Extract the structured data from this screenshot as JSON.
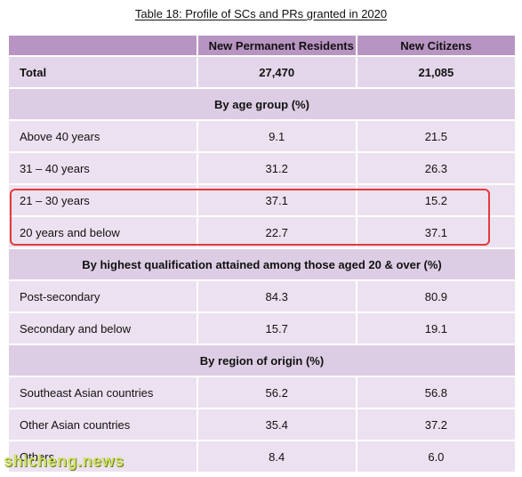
{
  "caption": "Table 18: Profile of SCs and PRs granted in 2020",
  "table": {
    "headers": [
      "",
      "New Permanent Residents",
      "New Citizens"
    ],
    "total": {
      "label": "Total",
      "pr": "27,470",
      "citizens": "21,085"
    },
    "sections": [
      {
        "title": "By age group (%)",
        "rows": [
          {
            "label": "Above 40 years",
            "pr": "9.1",
            "citizens": "21.5"
          },
          {
            "label": "31 – 40 years",
            "pr": "31.2",
            "citizens": "26.3"
          },
          {
            "label": "21 – 30 years",
            "pr": "37.1",
            "citizens": "15.2"
          },
          {
            "label": "20 years and below",
            "pr": "22.7",
            "citizens": "37.1"
          }
        ]
      },
      {
        "title": "By highest qualification attained among those aged 20 & over (%)",
        "rows": [
          {
            "label": "Post-secondary",
            "pr": "84.3",
            "citizens": "80.9"
          },
          {
            "label": "Secondary and below",
            "pr": "15.7",
            "citizens": "19.1"
          }
        ]
      },
      {
        "title": "By region of origin (%)",
        "rows": [
          {
            "label": "Southeast Asian countries",
            "pr": "56.2",
            "citizens": "56.8"
          },
          {
            "label": "Other Asian countries",
            "pr": "35.4",
            "citizens": "37.2"
          },
          {
            "label": "Others",
            "pr": "8.4",
            "citizens": "6.0"
          }
        ]
      }
    ]
  },
  "watermark": "shicheng.news",
  "colors": {
    "header": "#b894c2",
    "cell": "#ece1f0",
    "section": "#ddcde4",
    "highlight": "#e23b3b"
  }
}
